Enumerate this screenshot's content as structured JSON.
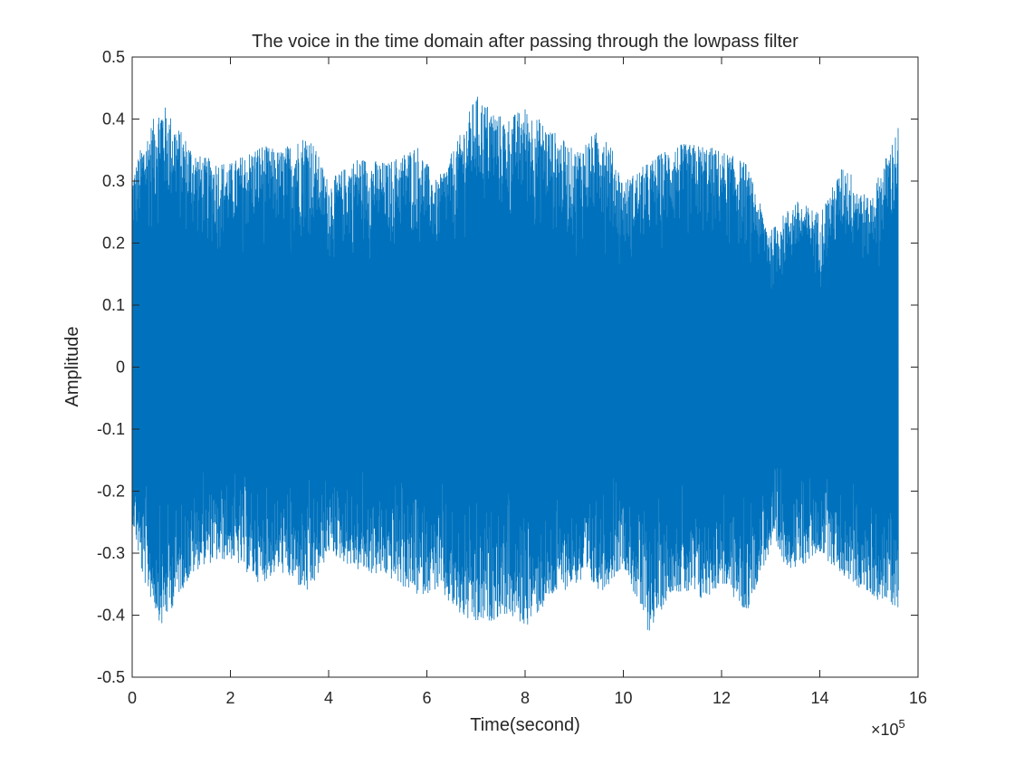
{
  "chart_data": {
    "type": "line",
    "title": "The voice in the time domain after passing through the lowpass filter",
    "xlabel": "Time(second)",
    "ylabel": "Amplitude",
    "xlim": [
      0,
      1600000
    ],
    "ylim": [
      -0.5,
      0.5
    ],
    "x_ticks": [
      0,
      200000,
      400000,
      600000,
      800000,
      1000000,
      1200000,
      1400000,
      1600000
    ],
    "x_tick_labels": [
      "0",
      "2",
      "4",
      "6",
      "8",
      "10",
      "12",
      "14",
      "16"
    ],
    "x_exponent": {
      "base": "×10",
      "power": "5"
    },
    "y_ticks": [
      -0.5,
      -0.4,
      -0.3,
      -0.2,
      -0.1,
      0,
      0.1,
      0.2,
      0.3,
      0.4,
      0.5
    ],
    "y_tick_labels": [
      "-0.5",
      "-0.4",
      "-0.3",
      "-0.2",
      "-0.1",
      "0",
      "0.1",
      "0.2",
      "0.3",
      "0.4",
      "0.5"
    ],
    "grid": false,
    "series": [
      {
        "color": "#0072BD",
        "x_start": 0,
        "x_end": 1560000,
        "envelope": {
          "x": [
            0,
            20000,
            60000,
            100000,
            140000,
            200000,
            260000,
            300000,
            360000,
            400000,
            460000,
            520000,
            580000,
            620000,
            660000,
            700000,
            760000,
            800000,
            860000,
            900000,
            960000,
            1000000,
            1050000,
            1100000,
            1160000,
            1200000,
            1250000,
            1280000,
            1300000,
            1350000,
            1400000,
            1450000,
            1500000,
            1560000
          ],
          "upper": [
            0.31,
            0.36,
            0.43,
            0.38,
            0.34,
            0.33,
            0.36,
            0.35,
            0.38,
            0.3,
            0.34,
            0.33,
            0.36,
            0.3,
            0.36,
            0.44,
            0.4,
            0.42,
            0.38,
            0.35,
            0.39,
            0.3,
            0.33,
            0.36,
            0.36,
            0.35,
            0.33,
            0.26,
            0.22,
            0.27,
            0.25,
            0.33,
            0.27,
            0.39
          ],
          "lower": [
            -0.25,
            -0.34,
            -0.42,
            -0.36,
            -0.32,
            -0.31,
            -0.35,
            -0.33,
            -0.37,
            -0.3,
            -0.33,
            -0.34,
            -0.37,
            -0.36,
            -0.4,
            -0.42,
            -0.4,
            -0.42,
            -0.37,
            -0.35,
            -0.36,
            -0.32,
            -0.43,
            -0.36,
            -0.38,
            -0.35,
            -0.4,
            -0.33,
            -0.3,
            -0.33,
            -0.3,
            -0.34,
            -0.37,
            -0.39
          ]
        }
      }
    ]
  }
}
